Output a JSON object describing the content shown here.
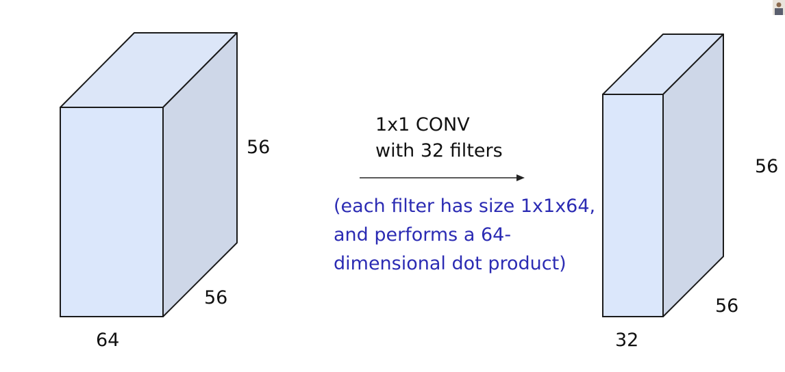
{
  "input_volume": {
    "width_label": "64",
    "height_label": "56",
    "depth_label": "56"
  },
  "operation": {
    "title_line1": "1x1 CONV",
    "title_line2": "with 32 filters",
    "note_line1": "(each filter has size 1x1x64,",
    "note_line2": "and performs a 64-",
    "note_line3": "dimensional dot product)",
    "note_color": "#2b2bb3"
  },
  "output_volume": {
    "width_label": "32",
    "height_label": "56",
    "depth_label": "56"
  },
  "colors": {
    "front_face": "#dbe7fb",
    "top_face": "#dce6f8",
    "side_face": "#ced7e8",
    "edge": "#1a1a1a"
  }
}
